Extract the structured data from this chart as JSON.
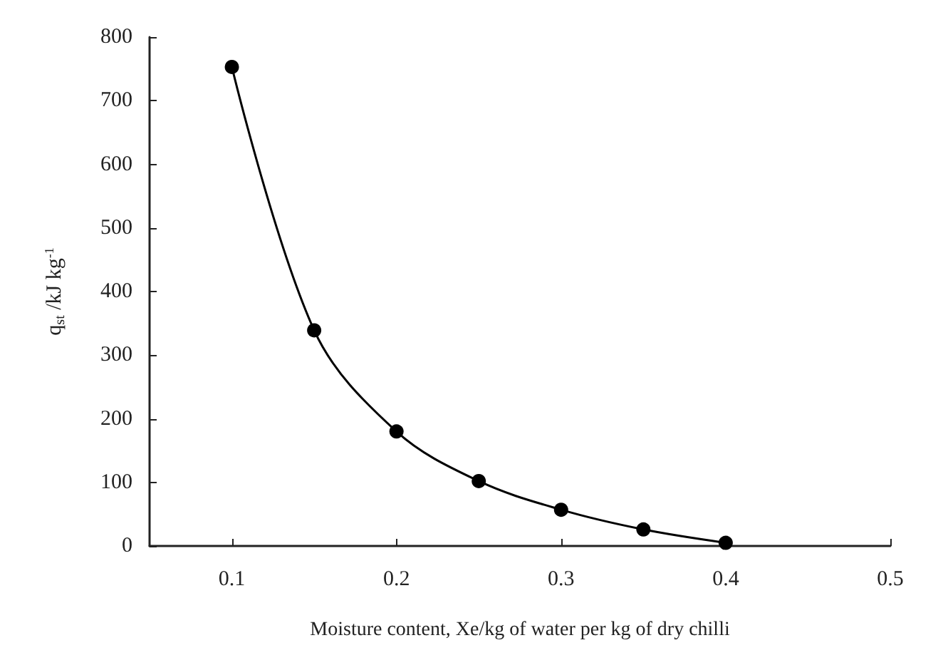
{
  "chart_data": {
    "type": "line",
    "xlabel": "Moisture content, Xe/kg of water per kg of dry chilli",
    "ylabel": "q$_{st}$ /kJ kg$^{-1}$",
    "x": [
      0.1,
      0.15,
      0.2,
      0.25,
      0.3,
      0.35,
      0.4
    ],
    "series": [
      {
        "color": "#000000",
        "values": [
          753,
          339,
          180,
          102,
          57,
          26,
          5
        ]
      }
    ],
    "xlim": [
      0.05,
      0.5
    ],
    "xticks": [
      0.1,
      0.2,
      0.3,
      0.4,
      0.5
    ],
    "ylim": [
      0,
      800
    ],
    "yticks": [
      0,
      100,
      200,
      300,
      400,
      500,
      600,
      700,
      800
    ],
    "marker": "circle",
    "line_style": "solid",
    "grid": false
  }
}
